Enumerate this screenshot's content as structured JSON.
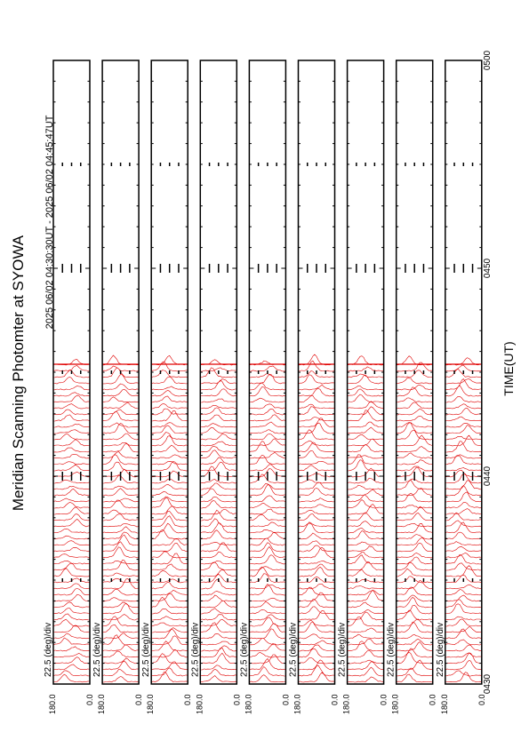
{
  "chart_data": {
    "type": "msp-stack",
    "title": "Meridian Scanning Photomter at SYOWA",
    "subtitle": "2025 06/02 04:30:30UT - 2025 06/02 04:45:47UT",
    "xlabel": "TIME(UT)",
    "xlim": [
      "0430",
      "0500"
    ],
    "xticks": [
      "0430",
      "0440",
      "0450",
      "0500"
    ],
    "color": "#e00000",
    "panels": [
      {
        "scale_label": "22.5 (deg)/div",
        "ymax_label": "180.0",
        "ymin_label": "0.0"
      },
      {
        "scale_label": "22.5 (deg)/div",
        "ymax_label": "180.0",
        "ymin_label": "0.0"
      },
      {
        "scale_label": "22.5 (deg)/div",
        "ymax_label": "180.0",
        "ymin_label": "0.0"
      },
      {
        "scale_label": "22.5 (deg)/div",
        "ymax_label": "180.0",
        "ymin_label": "0.0"
      },
      {
        "scale_label": "22.5 (deg)/div",
        "ymax_label": "180.0",
        "ymin_label": "0.0"
      },
      {
        "scale_label": "22.5 (deg)/div",
        "ymax_label": "180.0",
        "ymin_label": "0.0"
      },
      {
        "scale_label": "22.5 (deg)/div",
        "ymax_label": "180.0",
        "ymin_label": "0.0"
      },
      {
        "scale_label": "22.5 (deg)/div",
        "ymax_label": "180.0",
        "ymin_label": "0.0"
      },
      {
        "scale_label": "22.5 (deg)/div",
        "ymax_label": "180.0",
        "ymin_label": "0.0"
      }
    ]
  }
}
